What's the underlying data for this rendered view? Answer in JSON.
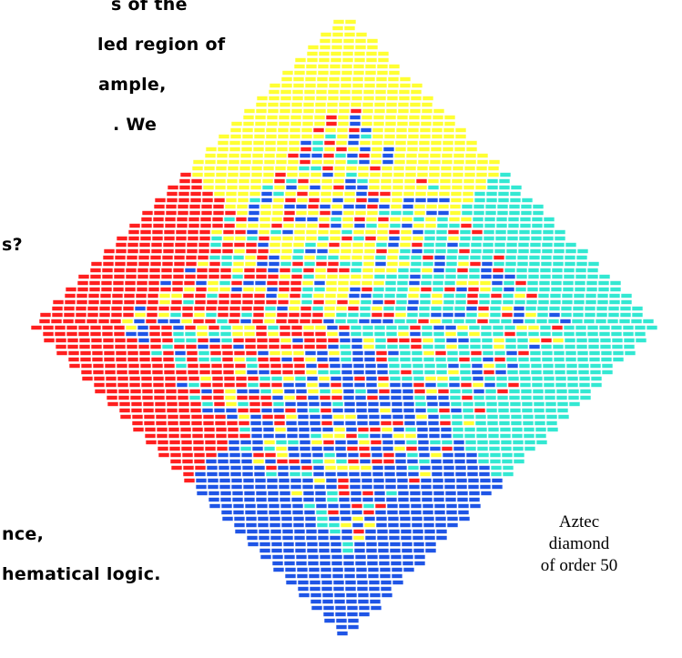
{
  "text_fragments": [
    "s of the",
    "led region of",
    "ample,",
    ". We",
    "s?",
    "nce,",
    "hematical logic."
  ],
  "caption": {
    "line1": "Aztec",
    "line2": "diamond",
    "line3": "of order 50"
  },
  "tiling": {
    "order": 50,
    "colors": {
      "north": "#ffff33",
      "west": "#ff1f1f",
      "east": "#33e8d2",
      "south": "#1f55e6"
    }
  }
}
